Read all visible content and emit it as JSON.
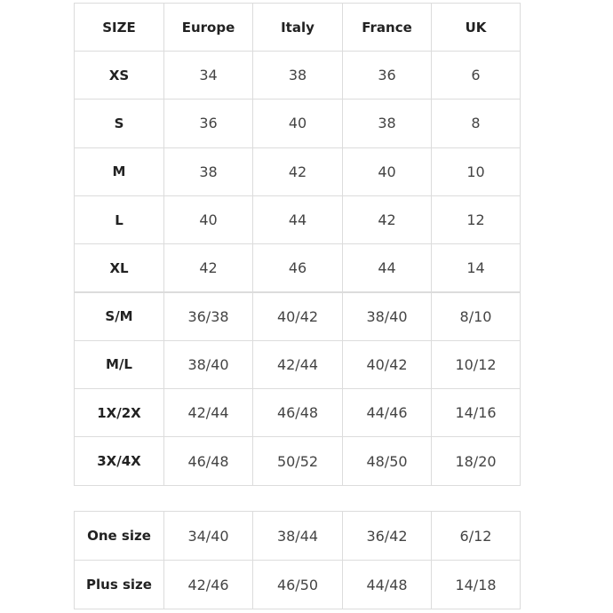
{
  "table": {
    "header": [
      "SIZE",
      "Europe",
      "Italy",
      "France",
      "UK"
    ],
    "rows": [
      [
        "XS",
        "34",
        "38",
        "36",
        "6"
      ],
      [
        "S",
        "36",
        "40",
        "38",
        "8"
      ],
      [
        "M",
        "38",
        "42",
        "40",
        "10"
      ],
      [
        "L",
        "40",
        "44",
        "42",
        "12"
      ],
      [
        "XL",
        "42",
        "46",
        "44",
        "14"
      ],
      [
        "S/M",
        "36/38",
        "40/42",
        "38/40",
        "8/10"
      ],
      [
        "M/L",
        "38/40",
        "42/44",
        "40/42",
        "10/12"
      ],
      [
        "1X/2X",
        "42/44",
        "46/48",
        "44/46",
        "14/16"
      ],
      [
        "3X/4X",
        "46/48",
        "50/52",
        "48/50",
        "18/20"
      ]
    ]
  },
  "table2": {
    "rows": [
      [
        "One size",
        "34/40",
        "38/44",
        "36/42",
        "6/12"
      ],
      [
        "Plus size",
        "42/46",
        "46/50",
        "44/48",
        "14/18"
      ]
    ]
  }
}
